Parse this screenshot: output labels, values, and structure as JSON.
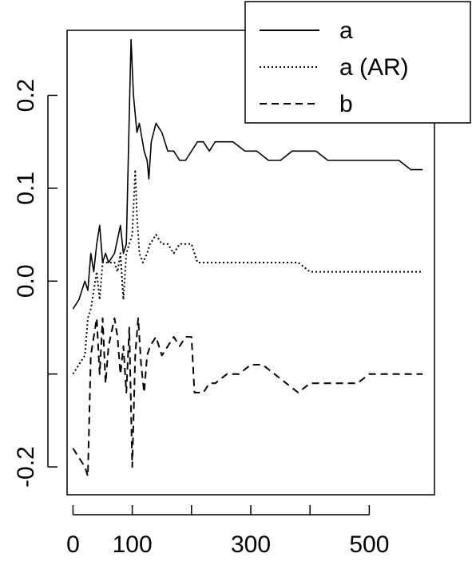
{
  "chart_data": {
    "type": "line",
    "title": "",
    "xlabel": "",
    "ylabel": "",
    "xlim": [
      -10,
      610
    ],
    "ylim": [
      -0.23,
      0.27
    ],
    "x_ticks": [
      {
        "value": 0,
        "label": "0"
      },
      {
        "value": 100,
        "label": "100"
      },
      {
        "value": 300,
        "label": "300"
      },
      {
        "value": 500,
        "label": "500"
      }
    ],
    "x_minor_ticks": [
      0,
      100,
      200,
      300,
      400,
      500
    ],
    "y_ticks": [
      {
        "value": -0.2,
        "label": "-0.2"
      },
      {
        "value": 0.0,
        "label": "0.0"
      },
      {
        "value": 0.1,
        "label": "0.1"
      },
      {
        "value": 0.2,
        "label": "0.2"
      }
    ],
    "y_minor_ticks": [
      -0.2,
      -0.1,
      0.0,
      0.1,
      0.2
    ],
    "grid": false,
    "legend_position": "top-right",
    "series": [
      {
        "name": "a",
        "style": "solid",
        "points": [
          [
            0,
            -0.03
          ],
          [
            10,
            -0.02
          ],
          [
            20,
            0.0
          ],
          [
            25,
            -0.01
          ],
          [
            30,
            0.03
          ],
          [
            35,
            0.01
          ],
          [
            40,
            0.04
          ],
          [
            45,
            0.06
          ],
          [
            50,
            0.02
          ],
          [
            55,
            0.03
          ],
          [
            60,
            0.02
          ],
          [
            70,
            0.03
          ],
          [
            80,
            0.06
          ],
          [
            85,
            0.03
          ],
          [
            90,
            0.04
          ],
          [
            95,
            0.18
          ],
          [
            98,
            0.26
          ],
          [
            102,
            0.2
          ],
          [
            108,
            0.16
          ],
          [
            112,
            0.17
          ],
          [
            120,
            0.14
          ],
          [
            125,
            0.13
          ],
          [
            128,
            0.11
          ],
          [
            132,
            0.15
          ],
          [
            140,
            0.17
          ],
          [
            150,
            0.16
          ],
          [
            160,
            0.14
          ],
          [
            170,
            0.14
          ],
          [
            180,
            0.13
          ],
          [
            190,
            0.13
          ],
          [
            200,
            0.14
          ],
          [
            210,
            0.15
          ],
          [
            220,
            0.15
          ],
          [
            230,
            0.14
          ],
          [
            240,
            0.15
          ],
          [
            250,
            0.15
          ],
          [
            270,
            0.15
          ],
          [
            290,
            0.14
          ],
          [
            310,
            0.14
          ],
          [
            330,
            0.13
          ],
          [
            350,
            0.13
          ],
          [
            370,
            0.14
          ],
          [
            390,
            0.14
          ],
          [
            410,
            0.14
          ],
          [
            430,
            0.13
          ],
          [
            450,
            0.13
          ],
          [
            470,
            0.13
          ],
          [
            490,
            0.13
          ],
          [
            510,
            0.13
          ],
          [
            530,
            0.13
          ],
          [
            550,
            0.13
          ],
          [
            570,
            0.12
          ],
          [
            590,
            0.12
          ]
        ]
      },
      {
        "name": "a (AR)",
        "style": "dotted",
        "points": [
          [
            0,
            -0.1
          ],
          [
            10,
            -0.09
          ],
          [
            20,
            -0.08
          ],
          [
            25,
            -0.04
          ],
          [
            30,
            -0.03
          ],
          [
            35,
            -0.01
          ],
          [
            40,
            0.01
          ],
          [
            45,
            -0.02
          ],
          [
            50,
            0.02
          ],
          [
            60,
            0.02
          ],
          [
            70,
            0.02
          ],
          [
            75,
            0.01
          ],
          [
            80,
            0.03
          ],
          [
            85,
            -0.02
          ],
          [
            90,
            0.03
          ],
          [
            95,
            0.04
          ],
          [
            100,
            0.05
          ],
          [
            105,
            0.12
          ],
          [
            108,
            0.07
          ],
          [
            112,
            0.03
          ],
          [
            118,
            0.02
          ],
          [
            125,
            0.03
          ],
          [
            130,
            0.04
          ],
          [
            140,
            0.05
          ],
          [
            150,
            0.04
          ],
          [
            160,
            0.04
          ],
          [
            170,
            0.03
          ],
          [
            180,
            0.04
          ],
          [
            190,
            0.04
          ],
          [
            200,
            0.04
          ],
          [
            205,
            0.03
          ],
          [
            210,
            0.02
          ],
          [
            220,
            0.02
          ],
          [
            230,
            0.02
          ],
          [
            240,
            0.02
          ],
          [
            260,
            0.02
          ],
          [
            280,
            0.02
          ],
          [
            300,
            0.02
          ],
          [
            320,
            0.02
          ],
          [
            340,
            0.02
          ],
          [
            360,
            0.02
          ],
          [
            380,
            0.02
          ],
          [
            400,
            0.01
          ],
          [
            420,
            0.01
          ],
          [
            440,
            0.01
          ],
          [
            460,
            0.01
          ],
          [
            480,
            0.01
          ],
          [
            500,
            0.01
          ],
          [
            520,
            0.01
          ],
          [
            540,
            0.01
          ],
          [
            560,
            0.01
          ],
          [
            580,
            0.01
          ],
          [
            590,
            0.01
          ]
        ]
      },
      {
        "name": "b",
        "style": "dashed",
        "points": [
          [
            0,
            -0.18
          ],
          [
            10,
            -0.19
          ],
          [
            20,
            -0.2
          ],
          [
            25,
            -0.21
          ],
          [
            30,
            -0.08
          ],
          [
            35,
            -0.06
          ],
          [
            40,
            -0.04
          ],
          [
            45,
            -0.1
          ],
          [
            50,
            -0.04
          ],
          [
            55,
            -0.11
          ],
          [
            60,
            -0.07
          ],
          [
            70,
            -0.04
          ],
          [
            75,
            -0.06
          ],
          [
            80,
            -0.1
          ],
          [
            85,
            -0.07
          ],
          [
            90,
            -0.12
          ],
          [
            95,
            -0.05
          ],
          [
            100,
            -0.2
          ],
          [
            105,
            -0.08
          ],
          [
            110,
            -0.04
          ],
          [
            115,
            -0.09
          ],
          [
            120,
            -0.12
          ],
          [
            125,
            -0.08
          ],
          [
            130,
            -0.07
          ],
          [
            140,
            -0.06
          ],
          [
            150,
            -0.08
          ],
          [
            160,
            -0.07
          ],
          [
            170,
            -0.06
          ],
          [
            180,
            -0.07
          ],
          [
            190,
            -0.06
          ],
          [
            200,
            -0.06
          ],
          [
            205,
            -0.12
          ],
          [
            210,
            -0.12
          ],
          [
            220,
            -0.12
          ],
          [
            230,
            -0.11
          ],
          [
            240,
            -0.11
          ],
          [
            260,
            -0.1
          ],
          [
            280,
            -0.1
          ],
          [
            300,
            -0.09
          ],
          [
            320,
            -0.09
          ],
          [
            340,
            -0.1
          ],
          [
            360,
            -0.11
          ],
          [
            380,
            -0.12
          ],
          [
            400,
            -0.11
          ],
          [
            420,
            -0.11
          ],
          [
            440,
            -0.11
          ],
          [
            460,
            -0.11
          ],
          [
            480,
            -0.11
          ],
          [
            500,
            -0.1
          ],
          [
            520,
            -0.1
          ],
          [
            540,
            -0.1
          ],
          [
            560,
            -0.1
          ],
          [
            580,
            -0.1
          ],
          [
            590,
            -0.1
          ]
        ]
      }
    ]
  },
  "legend": {
    "items": [
      {
        "label": "a",
        "style": "solid"
      },
      {
        "label": "a (AR)",
        "style": "dotted"
      },
      {
        "label": "b",
        "style": "dashed"
      }
    ]
  },
  "colors": {
    "line": "#000000",
    "background": "#ffffff",
    "axis": "#000000"
  }
}
